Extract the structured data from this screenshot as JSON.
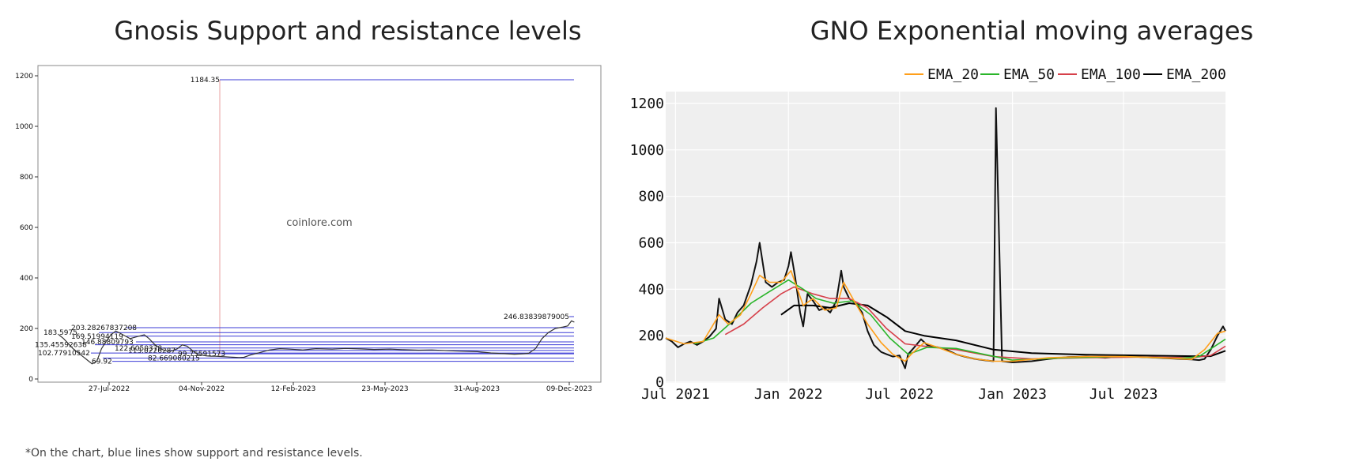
{
  "footnote": "*On the chart, blue lines show support and resistance levels.",
  "chart_data": [
    {
      "type": "line",
      "title": "Gnosis Support and resistance levels",
      "watermark": "coinlore.com",
      "x_tick_labels": [
        "27-Jul-2022",
        "04-Nov-2022",
        "12-Feb-2023",
        "23-May-2023",
        "31-Aug-2023",
        "09-Dec-2023"
      ],
      "y_ticks": [
        0,
        200,
        400,
        600,
        800,
        1000,
        1200
      ],
      "ylim": [
        0,
        1250
      ],
      "level_color": "#3b3bd6",
      "spike_color": "#e8a0a0",
      "price_color": "#333333",
      "price_series": {
        "x": [
          "2022-06-17",
          "2022-06-22",
          "2022-06-27",
          "2022-07-02",
          "2022-07-07",
          "2022-07-12",
          "2022-07-17",
          "2022-07-22",
          "2022-07-27",
          "2022-08-01",
          "2022-08-06",
          "2022-08-11",
          "2022-08-16",
          "2022-08-21",
          "2022-08-26",
          "2022-08-31",
          "2022-09-05",
          "2022-09-10",
          "2022-09-15",
          "2022-09-20",
          "2022-09-25",
          "2022-09-30",
          "2022-10-05",
          "2022-10-10",
          "2022-10-15",
          "2022-10-20",
          "2022-10-25",
          "2022-10-30",
          "2022-11-04",
          "2022-11-09",
          "2022-11-14",
          "2022-11-19",
          "2022-11-24",
          "2022-11-29",
          "2022-12-04",
          "2022-12-09",
          "2022-12-14",
          "2022-12-19",
          "2022-12-24",
          "2022-12-29",
          "2023-01-05",
          "2023-01-15",
          "2023-01-25",
          "2023-02-05",
          "2023-02-15",
          "2023-03-01",
          "2023-03-15",
          "2023-04-01",
          "2023-04-15",
          "2023-05-01",
          "2023-05-15",
          "2023-06-01",
          "2023-06-15",
          "2023-07-01",
          "2023-07-15",
          "2023-08-01",
          "2023-08-15",
          "2023-09-01",
          "2023-09-15",
          "2023-10-01",
          "2023-10-10",
          "2023-10-20",
          "2023-10-25",
          "2023-11-01",
          "2023-11-08",
          "2023-11-15",
          "2023-11-22",
          "2023-11-29",
          "2023-12-05",
          "2023-12-09",
          "2023-12-12"
        ],
        "y": [
          175,
          160,
          140,
          120,
          105,
          90,
          75,
          60,
          70,
          120,
          150,
          175,
          190,
          180,
          170,
          160,
          165,
          170,
          175,
          160,
          140,
          125,
          115,
          110,
          112,
          120,
          135,
          130,
          115,
          100,
          95,
          92,
          90,
          90,
          89,
          88,
          87,
          86,
          85,
          86,
          95,
          105,
          115,
          120,
          118,
          115,
          120,
          118,
          121,
          119,
          117,
          118,
          116,
          114,
          115,
          112,
          110,
          108,
          103,
          100,
          98,
          100,
          102,
          120,
          160,
          185,
          200,
          205,
          210,
          230,
          225
        ]
      },
      "levels": [
        {
          "value": 1184.35,
          "label": "1184.35"
        },
        {
          "value": 246.83839879005,
          "label": "246.83839879005"
        },
        {
          "value": 203.28267837208,
          "label": "203.28267837208"
        },
        {
          "value": 183.5975,
          "label": "183.5975"
        },
        {
          "value": 169.51994119,
          "label": "169.51994119"
        },
        {
          "value": 146.88809793,
          "label": "146.88809793"
        },
        {
          "value": 135.45592638,
          "label": "135.45592638"
        },
        {
          "value": 122.6050378,
          "label": "122.6050378"
        },
        {
          "value": 113.0226287,
          "label": "113.0226287"
        },
        {
          "value": 102.77910542,
          "label": "102.77910542"
        },
        {
          "value": 99.75591573,
          "label": "99.75591573"
        },
        {
          "value": 82.669080215,
          "label": "82.669080215"
        },
        {
          "value": 69.92,
          "label": "69.92"
        }
      ]
    },
    {
      "type": "line",
      "title": "GNO Exponential moving averages",
      "x_tick_labels": [
        "Jul 2021",
        "Jan 2022",
        "Jul 2022",
        "Jan 2023",
        "Jul 2023"
      ],
      "y_ticks": [
        0,
        200,
        400,
        600,
        800,
        1000,
        1200
      ],
      "ylim": [
        0,
        1250
      ],
      "xlim": [
        "2021-06-15",
        "2023-12-14"
      ],
      "grid": true,
      "background": "#efefef",
      "legend": "top-right",
      "price": {
        "x": [
          "2021-06-15",
          "2021-06-25",
          "2021-07-05",
          "2021-07-15",
          "2021-07-25",
          "2021-08-05",
          "2021-08-15",
          "2021-08-25",
          "2021-09-05",
          "2021-09-10",
          "2021-09-20",
          "2021-10-01",
          "2021-10-10",
          "2021-10-20",
          "2021-11-01",
          "2021-11-10",
          "2021-11-15",
          "2021-11-25",
          "2021-12-05",
          "2021-12-15",
          "2021-12-25",
          "2022-01-01",
          "2022-01-05",
          "2022-01-12",
          "2022-01-20",
          "2022-01-25",
          "2022-02-01",
          "2022-02-10",
          "2022-02-20",
          "2022-03-01",
          "2022-03-10",
          "2022-03-20",
          "2022-03-28",
          "2022-04-01",
          "2022-04-10",
          "2022-04-20",
          "2022-05-01",
          "2022-05-10",
          "2022-05-20",
          "2022-06-01",
          "2022-06-10",
          "2022-06-20",
          "2022-07-01",
          "2022-07-10",
          "2022-07-15",
          "2022-07-25",
          "2022-08-05",
          "2022-08-15",
          "2022-09-01",
          "2022-09-15",
          "2022-10-01",
          "2022-10-15",
          "2022-11-01",
          "2022-11-15",
          "2022-12-01",
          "2022-12-05",
          "2022-12-15",
          "2023-01-01",
          "2023-02-01",
          "2023-03-01",
          "2023-04-01",
          "2023-05-01",
          "2023-06-01",
          "2023-07-01",
          "2023-08-01",
          "2023-09-01",
          "2023-10-01",
          "2023-10-20",
          "2023-11-01",
          "2023-11-10",
          "2023-11-20",
          "2023-12-01",
          "2023-12-10",
          "2023-12-14"
        ],
        "y": [
          190,
          175,
          150,
          165,
          175,
          160,
          175,
          195,
          230,
          360,
          270,
          250,
          300,
          330,
          420,
          520,
          600,
          430,
          410,
          430,
          440,
          500,
          560,
          450,
          300,
          240,
          380,
          350,
          310,
          320,
          300,
          350,
          480,
          410,
          360,
          340,
          300,
          220,
          160,
          130,
          120,
          110,
          115,
          60,
          120,
          150,
          185,
          160,
          150,
          140,
          120,
          110,
          100,
          95,
          90,
          1180,
          90,
          85,
          90,
          100,
          108,
          110,
          105,
          112,
          108,
          104,
          100,
          98,
          95,
          100,
          140,
          200,
          240,
          220
        ]
      },
      "ema_20": {
        "x": [
          "2021-06-15",
          "2021-07-15",
          "2021-08-15",
          "2021-09-10",
          "2021-09-25",
          "2021-10-15",
          "2021-11-01",
          "2021-11-15",
          "2021-12-01",
          "2021-12-20",
          "2022-01-05",
          "2022-01-25",
          "2022-02-10",
          "2022-03-01",
          "2022-03-20",
          "2022-04-01",
          "2022-04-20",
          "2022-05-10",
          "2022-06-01",
          "2022-06-20",
          "2022-07-10",
          "2022-07-20",
          "2022-08-10",
          "2022-09-01",
          "2022-10-01",
          "2022-11-01",
          "2022-12-01",
          "2023-01-01",
          "2023-03-01",
          "2023-05-01",
          "2023-07-01",
          "2023-09-01",
          "2023-10-20",
          "2023-11-10",
          "2023-12-01",
          "2023-12-14"
        ],
        "y": [
          190,
          165,
          175,
          290,
          250,
          290,
          380,
          460,
          430,
          430,
          480,
          330,
          360,
          310,
          320,
          430,
          340,
          250,
          170,
          120,
          90,
          120,
          170,
          150,
          120,
          100,
          90,
          90,
          105,
          110,
          110,
          105,
          98,
          140,
          210,
          220
        ]
      },
      "ema_50": {
        "x": [
          "2021-08-01",
          "2021-09-01",
          "2021-10-01",
          "2021-11-01",
          "2021-12-01",
          "2022-01-01",
          "2022-01-25",
          "2022-02-15",
          "2022-03-15",
          "2022-04-15",
          "2022-05-15",
          "2022-06-15",
          "2022-07-15",
          "2022-08-15",
          "2022-10-01",
          "2022-11-15",
          "2023-01-01",
          "2023-04-01",
          "2023-07-01",
          "2023-10-01",
          "2023-11-01",
          "2023-12-14"
        ],
        "y": [
          165,
          190,
          260,
          340,
          390,
          440,
          400,
          360,
          340,
          350,
          290,
          190,
          120,
          150,
          145,
          120,
          95,
          105,
          110,
          102,
          110,
          185
        ]
      },
      "ema_100": {
        "x": [
          "2021-09-20",
          "2021-10-20",
          "2021-11-20",
          "2021-12-20",
          "2022-01-10",
          "2022-02-10",
          "2022-03-10",
          "2022-04-10",
          "2022-05-10",
          "2022-06-10",
          "2022-07-10",
          "2022-08-10",
          "2022-10-01",
          "2022-12-01",
          "2023-02-01",
          "2023-05-01",
          "2023-08-01",
          "2023-10-20",
          "2023-11-20",
          "2023-12-14"
        ],
        "y": [
          205,
          250,
          320,
          380,
          410,
          380,
          360,
          360,
          320,
          230,
          165,
          155,
          140,
          110,
          100,
          105,
          108,
          105,
          115,
          155
        ]
      },
      "ema_200": {
        "x": [
          "2021-12-20",
          "2022-01-10",
          "2022-02-10",
          "2022-03-10",
          "2022-04-10",
          "2022-05-10",
          "2022-06-10",
          "2022-07-10",
          "2022-08-10",
          "2022-10-01",
          "2022-12-01",
          "2023-02-01",
          "2023-05-01",
          "2023-08-01",
          "2023-10-20",
          "2023-11-20",
          "2023-12-14"
        ],
        "y": [
          290,
          330,
          330,
          320,
          340,
          330,
          280,
          220,
          200,
          180,
          140,
          125,
          118,
          115,
          112,
          112,
          135
        ]
      },
      "series": [
        {
          "name": "EMA_20",
          "color": "#ff9f1a"
        },
        {
          "name": "EMA_50",
          "color": "#2ab52a"
        },
        {
          "name": "EMA_100",
          "color": "#d6404a"
        },
        {
          "name": "EMA_200",
          "color": "#000000"
        }
      ]
    }
  ]
}
